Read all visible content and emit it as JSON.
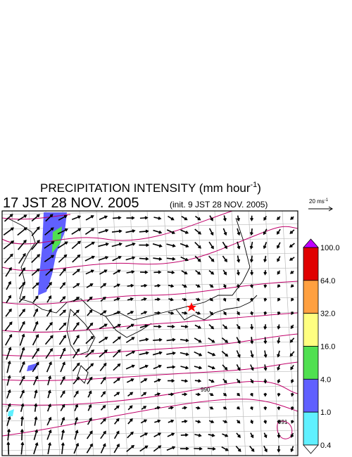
{
  "header": {
    "title": "PRECIPITATION INTENSITY (mm hour",
    "title_sup": "-1",
    "title_end": ")",
    "time": "17 JST 28 NOV. 2005",
    "init": "(init. 9 JST 28 NOV. 2005)"
  },
  "scale": {
    "label": "20 ms",
    "sup": "-1"
  },
  "legend": {
    "labels": [
      "100.0",
      "64.0",
      "32.0",
      "16.0",
      "4.0",
      "1.0",
      "0.4"
    ],
    "colors": [
      "#e00000",
      "#ffa040",
      "#ffff80",
      "#50e050",
      "#6060ff",
      "#60f0ff"
    ],
    "over_color": "#c000ff",
    "under_color": "#ffffff"
  },
  "contour_labels": [
    "990",
    "991"
  ]
}
